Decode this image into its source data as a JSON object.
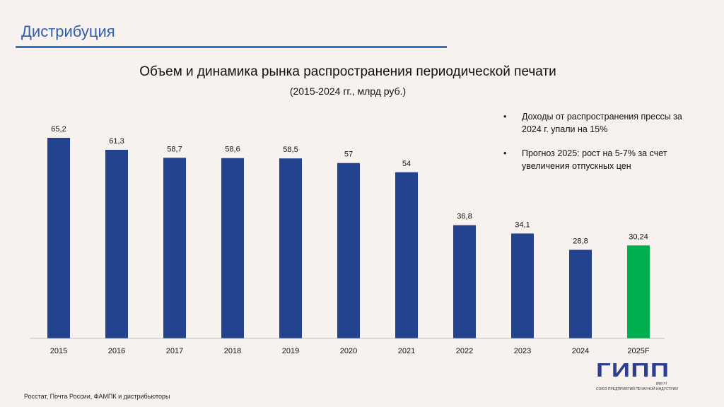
{
  "header": {
    "section": "Дистрибуция"
  },
  "chart_data": {
    "type": "bar",
    "title": "Объем и динамика рынка распространения периодической печати",
    "subtitle": "(2015-2024 гг., млрд руб.)",
    "categories": [
      "2015",
      "2016",
      "2017",
      "2018",
      "2019",
      "2020",
      "2021",
      "2022",
      "2023",
      "2024",
      "2025F"
    ],
    "values": [
      65.2,
      61.3,
      58.7,
      58.6,
      58.5,
      57,
      54,
      36.8,
      34.1,
      28.8,
      30.24
    ],
    "labels": [
      "65,2",
      "61,3",
      "58,7",
      "58,6",
      "58,5",
      "57",
      "54",
      "36,8",
      "34,1",
      "28,8",
      "30,24"
    ],
    "forecast": [
      false,
      false,
      false,
      false,
      false,
      false,
      false,
      false,
      false,
      false,
      true
    ],
    "colors": {
      "actual": "#24438e",
      "forecast": "#00b050"
    },
    "xlabel": "",
    "ylabel": "",
    "ylim": [
      0,
      65.2
    ],
    "grid": false
  },
  "notes": [
    "Доходы от распространения прессы за 2024 г. упали на 15%",
    "Прогноз 2025: рост на 5-7% за счет увеличения отпускных цен"
  ],
  "footer": {
    "source": "Росстат, Почта России, ФАМПК и дистрибьюторы"
  },
  "logo": {
    "main": "ГИПП",
    "url": "gipp.ru",
    "sub": "СОЮЗ ПРЕДПРИЯТИЙ ПЕЧАТНОЙ ИНДУСТРИИ"
  }
}
